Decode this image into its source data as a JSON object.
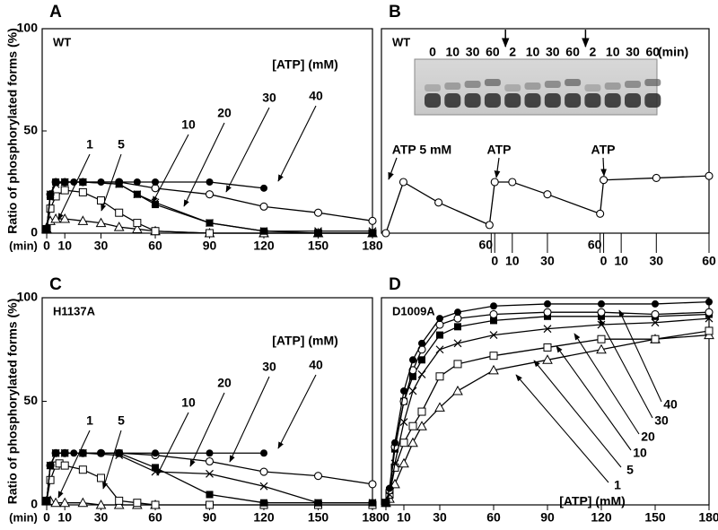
{
  "chart_data": [
    {
      "type": "line",
      "panel": "A",
      "label": "WT",
      "y_label": "Ratio of phosphorylated forms (%)",
      "x_unit": "(min)",
      "legend_title": "[ATP] (mM)",
      "xlim": [
        -2.5,
        180
      ],
      "ylim": [
        0,
        100
      ],
      "xticks": [
        0,
        10,
        30,
        60,
        90,
        120,
        150,
        180
      ],
      "yticks": [
        0,
        50,
        100
      ],
      "series": [
        {
          "name": "1",
          "marker": "open-triangle",
          "color": "#000000",
          "x": [
            0,
            2,
            5,
            10,
            20,
            30,
            40,
            50,
            60,
            90,
            120,
            150,
            180
          ],
          "values": [
            2,
            6,
            7,
            7,
            6,
            5,
            3,
            2,
            1,
            0,
            0,
            0,
            0
          ]
        },
        {
          "name": "5",
          "marker": "open-square",
          "color": "#000000",
          "x": [
            0,
            2,
            5,
            10,
            20,
            30,
            40,
            50,
            60,
            90,
            120,
            150,
            180
          ],
          "values": [
            2,
            12,
            18,
            21,
            20,
            16,
            10,
            5,
            1,
            0,
            0,
            0,
            0
          ]
        },
        {
          "name": "10",
          "marker": "filled-square",
          "color": "#000000",
          "x": [
            0,
            2,
            5,
            10,
            20,
            40,
            50,
            60,
            90,
            120,
            150,
            180
          ],
          "values": [
            2,
            18,
            25,
            25,
            25,
            24,
            19,
            14,
            5,
            1,
            0,
            0
          ]
        },
        {
          "name": "20",
          "marker": "x",
          "color": "#000000",
          "x": [
            0,
            2,
            5,
            10,
            20,
            40,
            50,
            60,
            90,
            120,
            150,
            180
          ],
          "values": [
            2,
            19,
            24,
            25,
            25,
            24,
            19,
            15,
            5,
            1,
            1,
            1
          ]
        },
        {
          "name": "30",
          "marker": "open-circle",
          "color": "#000000",
          "x": [
            0,
            2,
            5,
            10,
            20,
            40,
            60,
            90,
            120,
            150,
            180
          ],
          "values": [
            2,
            19,
            25,
            25,
            25,
            25,
            22,
            19,
            13,
            10,
            6
          ]
        },
        {
          "name": "40",
          "marker": "filled-circle",
          "color": "#000000",
          "x": [
            0,
            2,
            5,
            10,
            15,
            20,
            30,
            40,
            50,
            60,
            90,
            120
          ],
          "values": [
            2,
            19,
            25,
            25,
            25,
            25,
            25,
            25,
            25,
            25,
            25,
            22
          ]
        }
      ]
    },
    {
      "type": "line",
      "panel": "B",
      "label": "WT",
      "gel_lanes": [
        "0",
        "10",
        "30",
        "60",
        "2",
        "10",
        "30",
        "60",
        "2",
        "10",
        "30",
        "60"
      ],
      "gel_unit": "(min)",
      "annotations": [
        "ATP 5 mM",
        "ATP",
        "ATP"
      ],
      "xlim": [
        -2.5,
        184
      ],
      "ylim": [
        0,
        100
      ],
      "xticks": [
        60,
        {
          "value": 62,
          "label": "0"
        },
        {
          "value": 72,
          "label": "10"
        },
        {
          "value": 92,
          "label": "30"
        },
        {
          "value": 122,
          "label": "60"
        },
        {
          "value": 124,
          "label": "0"
        },
        {
          "value": 134,
          "label": "10"
        },
        {
          "value": 154,
          "label": "30"
        },
        {
          "value": 184,
          "label": "60"
        }
      ],
      "series": [
        {
          "marker": "open-circle",
          "color": "#000000",
          "x": [
            0,
            10,
            30,
            59,
            62,
            72,
            92,
            122,
            124,
            154,
            184
          ],
          "values": [
            0,
            25,
            15,
            4,
            25,
            25,
            19,
            9.5,
            26,
            27,
            28
          ]
        }
      ]
    },
    {
      "type": "line",
      "panel": "C",
      "label": "H1137A",
      "y_label": "Ratio of phosphorylated forms (%)",
      "x_unit": "(min)",
      "legend_title": "[ATP] (mM)",
      "xlim": [
        -2.5,
        180
      ],
      "ylim": [
        0,
        100
      ],
      "xticks": [
        0,
        10,
        30,
        60,
        90,
        120,
        150,
        180
      ],
      "yticks": [
        0,
        50,
        100
      ],
      "series": [
        {
          "name": "1",
          "marker": "open-triangle",
          "color": "#000000",
          "x": [
            0,
            2,
            5,
            10,
            20,
            30,
            40,
            50,
            60
          ],
          "values": [
            2,
            2,
            1,
            1,
            1,
            0,
            0,
            0,
            0
          ]
        },
        {
          "name": "5",
          "marker": "open-square",
          "color": "#000000",
          "x": [
            0,
            2,
            5,
            7,
            10,
            20,
            30,
            40,
            50,
            60,
            90,
            120,
            150,
            180
          ],
          "values": [
            2,
            12,
            19,
            20,
            19,
            17,
            13,
            2,
            1,
            0,
            0,
            0,
            0,
            0
          ]
        },
        {
          "name": "10",
          "marker": "filled-square",
          "color": "#000000",
          "x": [
            0,
            2,
            5,
            10,
            20,
            40,
            60,
            90,
            120,
            150,
            180
          ],
          "values": [
            2,
            19,
            25,
            25,
            25,
            25,
            18,
            5,
            1,
            1,
            1
          ]
        },
        {
          "name": "20",
          "marker": "x",
          "color": "#000000",
          "x": [
            0,
            2,
            5,
            10,
            20,
            40,
            60,
            90,
            120,
            150,
            180
          ],
          "values": [
            2,
            19,
            25,
            25,
            25,
            24,
            16,
            15,
            9,
            1,
            1
          ]
        },
        {
          "name": "30",
          "marker": "open-circle",
          "color": "#000000",
          "x": [
            0,
            2,
            5,
            10,
            20,
            30,
            40,
            60,
            90,
            120,
            150,
            180
          ],
          "values": [
            2,
            19,
            25,
            25,
            25,
            25,
            25,
            24,
            21,
            16,
            14,
            10
          ]
        },
        {
          "name": "40",
          "marker": "filled-circle",
          "color": "#000000",
          "x": [
            0,
            2,
            5,
            10,
            15,
            20,
            30,
            40,
            60,
            90,
            120
          ],
          "values": [
            2,
            19,
            25,
            25,
            25,
            25,
            25,
            25,
            25,
            25,
            25
          ]
        }
      ]
    },
    {
      "type": "line",
      "panel": "D",
      "label": "D1009A",
      "legend_title": "[ATP] (mM)",
      "xlim": [
        -2.5,
        180
      ],
      "ylim": [
        0,
        100
      ],
      "xticks": [
        0,
        10,
        30,
        60,
        90,
        120,
        150,
        180
      ],
      "series": [
        {
          "name": "1",
          "marker": "open-triangle",
          "color": "#000000",
          "x": [
            0,
            2,
            5,
            10,
            15,
            20,
            30,
            40,
            60,
            90,
            120,
            150,
            180
          ],
          "values": [
            1,
            3,
            10,
            20,
            30,
            38,
            47,
            55,
            65,
            70,
            75,
            80,
            82
          ]
        },
        {
          "name": "5",
          "marker": "open-square",
          "color": "#000000",
          "x": [
            0,
            2,
            5,
            10,
            15,
            20,
            30,
            40,
            60,
            90,
            120,
            150,
            180
          ],
          "values": [
            1,
            5,
            18,
            30,
            38,
            45,
            62,
            68,
            72,
            76,
            80,
            80,
            84
          ]
        },
        {
          "name": "10",
          "marker": "filled-square",
          "color": "#000000",
          "x": [
            0,
            2,
            5,
            10,
            15,
            20,
            30,
            40,
            60,
            90,
            120,
            150,
            180
          ],
          "values": [
            1,
            7,
            27,
            50,
            62,
            70,
            82,
            86,
            89,
            91,
            91,
            91,
            92
          ]
        },
        {
          "name": "20",
          "marker": "x",
          "color": "#000000",
          "x": [
            0,
            2,
            5,
            10,
            15,
            20,
            30,
            40,
            60,
            90,
            120,
            150,
            180
          ],
          "values": [
            1,
            5,
            20,
            40,
            55,
            63,
            75,
            78,
            82,
            85,
            87,
            88,
            90
          ]
        },
        {
          "name": "30",
          "marker": "open-circle",
          "color": "#000000",
          "x": [
            0,
            2,
            5,
            10,
            15,
            20,
            30,
            40,
            60,
            90,
            120,
            150,
            180
          ],
          "values": [
            1,
            7,
            28,
            50,
            65,
            75,
            87,
            90,
            92,
            93,
            93,
            92,
            93
          ]
        },
        {
          "name": "40",
          "marker": "filled-circle",
          "color": "#000000",
          "x": [
            0,
            2,
            5,
            10,
            15,
            20,
            30,
            40,
            60,
            90,
            120,
            150,
            180
          ],
          "values": [
            1,
            8,
            30,
            55,
            70,
            78,
            90,
            93,
            96,
            97,
            97,
            97,
            98
          ]
        }
      ]
    }
  ]
}
